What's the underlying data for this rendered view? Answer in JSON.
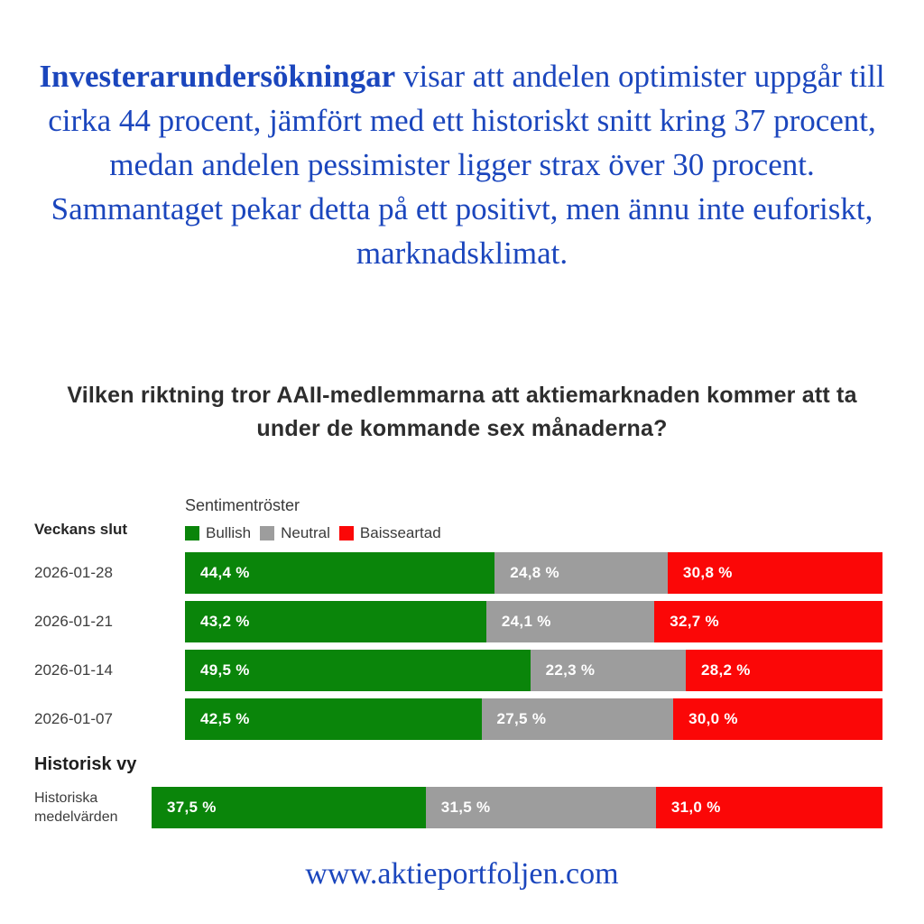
{
  "intro": {
    "lead": "Investerarundersökningar",
    "rest": " visar att andelen optimister uppgår till cirka 44 procent, jämfört med ett historiskt snitt kring 37 procent, medan andelen pessimister ligger strax över 30 procent. Sammantaget pekar detta på ett positivt, men ännu inte euforiskt, marknadsklimat.",
    "color": "#1b46bd"
  },
  "chart_data": {
    "type": "bar",
    "orientation": "horizontal-stacked",
    "title": "Vilken riktning tror AAII-medlemmarna att aktiemarknaden kommer att ta under de kommande sex månaderna?",
    "legend_title": "Sentimentröster",
    "legend_position": "top",
    "grid": false,
    "xlim": [
      0,
      100
    ],
    "legend": [
      {
        "label": "Bullish",
        "color": "#0a850a"
      },
      {
        "label": "Neutral",
        "color": "#9d9d9d"
      },
      {
        "label": "Baisseartad",
        "color": "#fb0707"
      }
    ],
    "section_week_label": "Veckans slut",
    "section_history_label": "Historisk vy",
    "history_row_label": "Historiska medelvärden",
    "categories": [
      "2026-01-28",
      "2026-01-21",
      "2026-01-14",
      "2026-01-07"
    ],
    "series": [
      {
        "name": "Bullish",
        "values": [
          44.4,
          43.2,
          49.5,
          42.5
        ],
        "history": 37.5
      },
      {
        "name": "Neutral",
        "values": [
          24.8,
          24.1,
          22.3,
          27.5
        ],
        "history": 31.5
      },
      {
        "name": "Baisseartad",
        "values": [
          30.8,
          32.7,
          28.2,
          30.0
        ],
        "history": 31.0
      }
    ],
    "value_labels": {
      "rows": [
        [
          "44,4 %",
          "24,8 %",
          "30,8 %"
        ],
        [
          "43,2 %",
          "24,1 %",
          "32,7 %"
        ],
        [
          "49,5 %",
          "22,3 %",
          "28,2 %"
        ],
        [
          "42,5 %",
          "27,5 %",
          "30,0 %"
        ]
      ],
      "history": [
        "37,5 %",
        "31,5 %",
        "31,0 %"
      ]
    }
  },
  "footer": {
    "url": "www.aktieportfoljen.com"
  }
}
